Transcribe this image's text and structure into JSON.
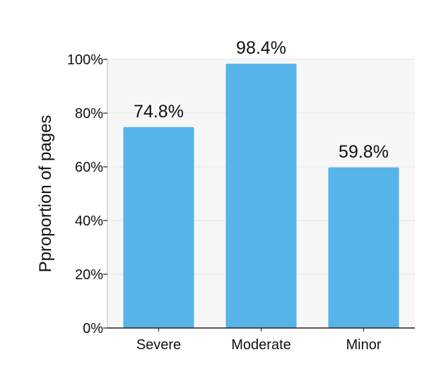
{
  "chart_data": {
    "type": "bar",
    "categories": [
      "Severe",
      "Moderate",
      "Minor"
    ],
    "values": [
      74.8,
      98.4,
      59.8
    ],
    "value_labels": [
      "74.8%",
      "98.4%",
      "59.8%"
    ],
    "ylabel": "Pproportion of pages",
    "xlabel": "",
    "ylim": [
      0,
      100
    ],
    "yticks": [
      0,
      20,
      40,
      60,
      80,
      100
    ],
    "ytick_labels": [
      "0%",
      "20%",
      "40%",
      "60%",
      "80%",
      "100%"
    ],
    "grid": true,
    "bar_color": "#56b4e9",
    "plot_background": "#f7f7f7",
    "grid_color": "#e6e6e6"
  }
}
